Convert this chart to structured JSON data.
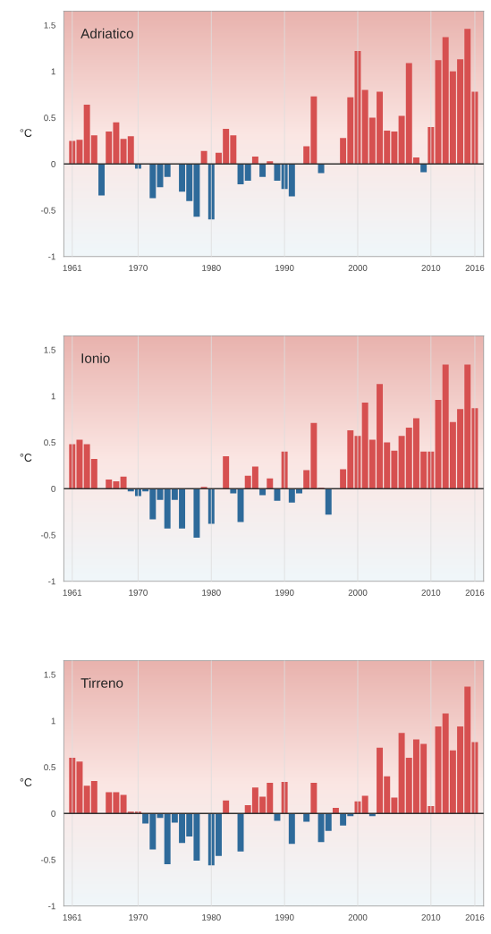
{
  "chart_data": [
    {
      "type": "bar",
      "title": "Adriatico",
      "ylabel": "°C",
      "x": [
        1961,
        1962,
        1963,
        1964,
        1965,
        1966,
        1967,
        1968,
        1969,
        1970,
        1971,
        1972,
        1973,
        1974,
        1975,
        1976,
        1977,
        1978,
        1979,
        1980,
        1981,
        1982,
        1983,
        1984,
        1985,
        1986,
        1987,
        1988,
        1989,
        1990,
        1991,
        1992,
        1993,
        1994,
        1995,
        1996,
        1997,
        1998,
        1999,
        2000,
        2001,
        2002,
        2003,
        2004,
        2005,
        2006,
        2007,
        2008,
        2009,
        2010,
        2011,
        2012,
        2013,
        2014,
        2015,
        2016
      ],
      "series": [
        {
          "color": "#d65050",
          "values": [
            0.25,
            0.26,
            0.64,
            0.31,
            null,
            0.35,
            0.45,
            0.27,
            0.3,
            null,
            null,
            null,
            null,
            null,
            null,
            null,
            null,
            null,
            0.14,
            null,
            0.12,
            0.38,
            0.31,
            null,
            null,
            0.08,
            null,
            0.03,
            null,
            null,
            null,
            null,
            0.19,
            0.73,
            null,
            0.0,
            null,
            0.28,
            0.72,
            1.22,
            0.8,
            0.5,
            0.78,
            0.36,
            0.35,
            0.52,
            1.09,
            0.07,
            null,
            0.4,
            1.12,
            1.37,
            1.0,
            1.13,
            1.46,
            0.78
          ]
        },
        {
          "color": "#2e6a9a",
          "values": [
            null,
            null,
            null,
            null,
            -0.34,
            null,
            null,
            null,
            null,
            -0.05,
            null,
            -0.37,
            -0.25,
            -0.14,
            null,
            -0.3,
            -0.4,
            -0.57,
            null,
            -0.6,
            null,
            null,
            null,
            -0.22,
            -0.18,
            null,
            -0.14,
            null,
            -0.18,
            -0.27,
            -0.35,
            null,
            null,
            null,
            -0.1,
            null,
            null,
            null,
            null,
            null,
            null,
            null,
            null,
            null,
            null,
            null,
            null,
            null,
            -0.09,
            null,
            null,
            null,
            null,
            null,
            null,
            null
          ]
        }
      ],
      "xlim": [
        1959.85,
        2017.2
      ],
      "xticks": [
        1961,
        1970,
        1980,
        1990,
        2000,
        2010,
        2016
      ],
      "ylim": [
        -1,
        1.65
      ],
      "yticks": [
        -1,
        -0.5,
        0,
        0.5,
        1,
        1.5
      ],
      "ref_lines": [
        {
          "axis": "y",
          "value": 0,
          "color": "#333333"
        }
      ],
      "grid": "x",
      "legend": false
    },
    {
      "type": "bar",
      "title": "Ionio",
      "ylabel": "°C",
      "x": [
        1961,
        1962,
        1963,
        1964,
        1965,
        1966,
        1967,
        1968,
        1969,
        1970,
        1971,
        1972,
        1973,
        1974,
        1975,
        1976,
        1977,
        1978,
        1979,
        1980,
        1981,
        1982,
        1983,
        1984,
        1985,
        1986,
        1987,
        1988,
        1989,
        1990,
        1991,
        1992,
        1993,
        1994,
        1995,
        1996,
        1997,
        1998,
        1999,
        2000,
        2001,
        2002,
        2003,
        2004,
        2005,
        2006,
        2007,
        2008,
        2009,
        2010,
        2011,
        2012,
        2013,
        2014,
        2015,
        2016
      ],
      "series": [
        {
          "color": "#d65050",
          "values": [
            0.48,
            0.53,
            0.48,
            0.32,
            0.0,
            0.1,
            0.08,
            0.13,
            null,
            null,
            null,
            null,
            null,
            null,
            null,
            null,
            null,
            null,
            0.02,
            null,
            0.0,
            0.35,
            null,
            null,
            0.14,
            0.24,
            null,
            0.11,
            null,
            0.4,
            null,
            null,
            0.2,
            0.71,
            0.01,
            null,
            0.0,
            0.21,
            0.63,
            0.57,
            0.93,
            0.53,
            1.13,
            0.5,
            0.41,
            0.57,
            0.66,
            0.76,
            0.4,
            0.4,
            0.96,
            1.34,
            0.72,
            0.86,
            1.34,
            0.87
          ]
        },
        {
          "color": "#2e6a9a",
          "values": [
            null,
            null,
            null,
            null,
            null,
            null,
            null,
            null,
            -0.03,
            -0.08,
            -0.03,
            -0.33,
            -0.12,
            -0.43,
            -0.12,
            -0.43,
            null,
            -0.53,
            null,
            -0.38,
            null,
            null,
            -0.05,
            -0.36,
            null,
            null,
            -0.07,
            null,
            -0.13,
            null,
            -0.15,
            -0.05,
            null,
            null,
            null,
            -0.28,
            null,
            null,
            null,
            null,
            null,
            null,
            null,
            null,
            null,
            null,
            null,
            null,
            null,
            null,
            null,
            null,
            null,
            null,
            null,
            null
          ]
        }
      ],
      "xlim": [
        1959.85,
        2017.2
      ],
      "xticks": [
        1961,
        1970,
        1980,
        1990,
        2000,
        2010,
        2016
      ],
      "ylim": [
        -1,
        1.65
      ],
      "yticks": [
        -1,
        -0.5,
        0,
        0.5,
        1,
        1.5
      ],
      "ref_lines": [
        {
          "axis": "y",
          "value": 0,
          "color": "#333333"
        }
      ],
      "grid": "x",
      "legend": false
    },
    {
      "type": "bar",
      "title": "Tirreno",
      "ylabel": "°C",
      "x": [
        1961,
        1962,
        1963,
        1964,
        1965,
        1966,
        1967,
        1968,
        1969,
        1970,
        1971,
        1972,
        1973,
        1974,
        1975,
        1976,
        1977,
        1978,
        1979,
        1980,
        1981,
        1982,
        1983,
        1984,
        1985,
        1986,
        1987,
        1988,
        1989,
        1990,
        1991,
        1992,
        1993,
        1994,
        1995,
        1996,
        1997,
        1998,
        1999,
        2000,
        2001,
        2002,
        2003,
        2004,
        2005,
        2006,
        2007,
        2008,
        2009,
        2010,
        2011,
        2012,
        2013,
        2014,
        2015,
        2016
      ],
      "series": [
        {
          "color": "#d65050",
          "values": [
            0.6,
            0.56,
            0.3,
            0.35,
            0.0,
            0.23,
            0.23,
            0.2,
            0.02,
            0.02,
            null,
            null,
            null,
            null,
            null,
            null,
            null,
            null,
            0.0,
            null,
            null,
            0.14,
            null,
            null,
            0.09,
            0.28,
            0.18,
            0.33,
            null,
            0.34,
            null,
            0.0,
            null,
            0.33,
            null,
            null,
            0.06,
            null,
            null,
            0.13,
            0.19,
            null,
            0.71,
            0.4,
            0.17,
            0.87,
            0.6,
            0.8,
            0.75,
            0.08,
            0.94,
            1.08,
            0.68,
            0.94,
            1.37,
            0.77
          ]
        },
        {
          "color": "#2e6a9a",
          "values": [
            null,
            null,
            null,
            null,
            null,
            null,
            null,
            null,
            null,
            null,
            -0.11,
            -0.39,
            -0.05,
            -0.55,
            -0.1,
            -0.32,
            -0.25,
            -0.51,
            null,
            -0.56,
            -0.46,
            null,
            null,
            -0.41,
            null,
            null,
            null,
            null,
            -0.08,
            null,
            -0.33,
            null,
            -0.09,
            null,
            -0.31,
            -0.19,
            null,
            -0.13,
            -0.03,
            null,
            null,
            -0.03,
            null,
            null,
            null,
            null,
            null,
            null,
            null,
            null,
            null,
            null,
            null,
            null,
            null,
            null
          ]
        }
      ],
      "xlim": [
        1959.85,
        2017.2
      ],
      "xticks": [
        1961,
        1970,
        1980,
        1990,
        2000,
        2010,
        2016
      ],
      "ylim": [
        -1,
        1.65
      ],
      "yticks": [
        -1,
        -0.5,
        0,
        0.5,
        1,
        1.5
      ],
      "ref_lines": [
        {
          "axis": "y",
          "value": 0,
          "color": "#333333"
        }
      ],
      "grid": "x",
      "legend": false
    }
  ]
}
